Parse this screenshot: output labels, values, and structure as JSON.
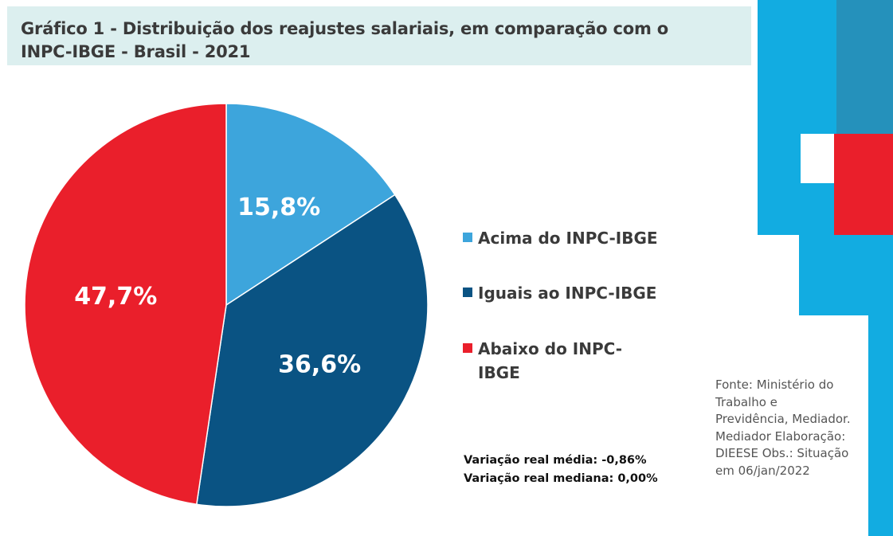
{
  "title": "Gráfico 1 - Distribuição dos reajustes salariais, em comparação com o INPC-IBGE - Brasil - 2021",
  "chart_data": {
    "type": "pie",
    "title": "Gráfico 1 - Distribuição dos reajustes salariais, em comparação com o INPC-IBGE - Brasil - 2021",
    "categories": [
      "Acima do INPC-IBGE",
      "Iguais ao INPC-IBGE",
      "Abaixo do INPC-IBGE"
    ],
    "values": [
      15.8,
      36.6,
      47.7
    ],
    "labels": [
      "15,8%",
      "36,6%",
      "47,7%"
    ],
    "colors": [
      "#3da5dc",
      "#0a5383",
      "#ea1f2b"
    ],
    "start_angle": "12 o'clock, clockwise",
    "legend_placement": "right"
  },
  "legend": {
    "items": [
      {
        "label": "Acima do INPC-IBGE",
        "color": "#3da5dc"
      },
      {
        "label": "Iguais ao INPC-IBGE",
        "color": "#0a5383"
      },
      {
        "label": "Abaixo do INPC-IBGE",
        "color": "#ea1f2b"
      }
    ]
  },
  "stats": {
    "mean": "Variação real média: -0,86%",
    "median": "Variação real mediana: 0,00%"
  },
  "source": "Fonte: Ministério do Trabalho e Previdência, Mediador. Mediador Elaboração: DIEESE Obs.: Situação em 06/jan/2022",
  "decoration_colors": {
    "light_blue": "#12ace1",
    "steel_blue": "#2591bb",
    "red": "#ea1f2b"
  }
}
